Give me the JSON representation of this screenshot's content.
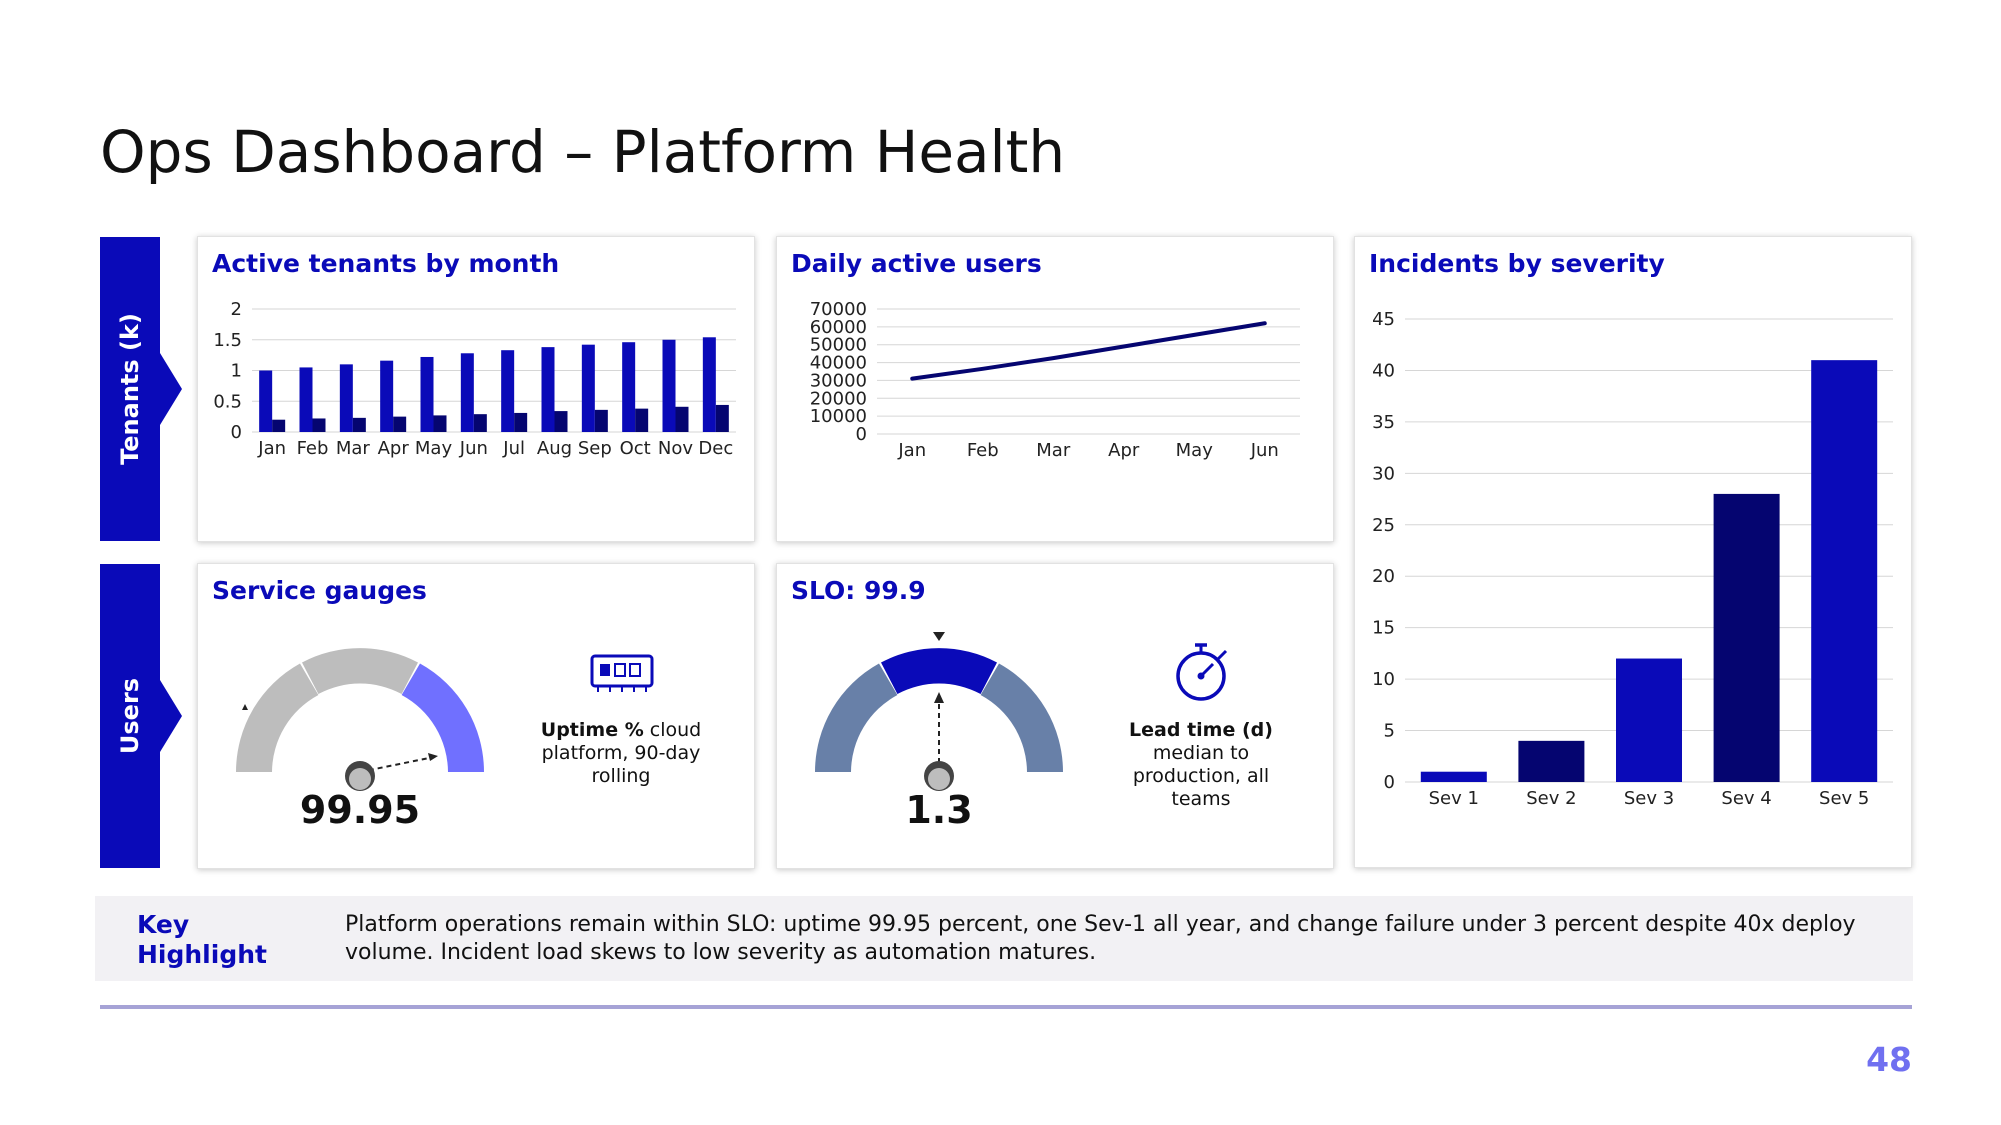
{
  "page": {
    "title": "Ops Dashboard – Platform Health",
    "page_number": "48"
  },
  "side_tabs": {
    "top": "Tenants (k)",
    "bottom": "Users"
  },
  "colors": {
    "accent": "#0a0ab8",
    "dark_navy": "#050570",
    "light_blue": "#7070ff",
    "gray": "#bdbdbd",
    "slate": "#6880a8"
  },
  "cards": {
    "tenants": {
      "title": "Active tenants by month"
    },
    "dau": {
      "title": "Daily active users"
    },
    "incidents": {
      "title": "Incidents by severity"
    },
    "gauges": {
      "title": "Service gauges",
      "value": "99.95",
      "kpi_bold": "Uptime %",
      "kpi_text": " cloud platform, 90-day rolling",
      "icon": "server-icon"
    },
    "slo": {
      "title": "SLO: 99.9",
      "value": "1.3",
      "kpi_bold": "Lead time (d)",
      "kpi_text": "median to production, all teams",
      "icon": "stopwatch-icon"
    }
  },
  "highlight": {
    "label": "Key Highlight",
    "text": "Platform operations remain within SLO: uptime 99.95 percent, one Sev-1 all year, and change failure under 3 percent despite 40x deploy volume. Incident load skews to low severity as automation matures."
  },
  "chart_data": [
    {
      "id": "tenants",
      "type": "bar",
      "title": "Active tenants by month",
      "categories": [
        "Jan",
        "Feb",
        "Mar",
        "Apr",
        "May",
        "Jun",
        "Jul",
        "Aug",
        "Sep",
        "Oct",
        "Nov",
        "Dec"
      ],
      "series": [
        {
          "values": [
            1.0,
            1.05,
            1.1,
            1.16,
            1.22,
            1.28,
            1.33,
            1.38,
            1.42,
            1.46,
            1.5,
            1.54
          ]
        },
        {
          "values": [
            0.2,
            0.22,
            0.23,
            0.25,
            0.27,
            0.29,
            0.31,
            0.34,
            0.36,
            0.38,
            0.41,
            0.44
          ]
        }
      ],
      "ylim": [
        0,
        2
      ],
      "yticks": [
        "0",
        "0.5",
        "1",
        "1.5",
        "2"
      ],
      "grid": true
    },
    {
      "id": "dau",
      "type": "line",
      "title": "Daily active users",
      "categories": [
        "Jan",
        "Feb",
        "Mar",
        "Apr",
        "May",
        "Jun"
      ],
      "series": [
        {
          "values": [
            31000,
            36500,
            42500,
            49000,
            55500,
            62000
          ]
        }
      ],
      "ylim": [
        0,
        70000
      ],
      "yticks": [
        "0",
        "10000",
        "20000",
        "30000",
        "40000",
        "50000",
        "60000",
        "70000"
      ],
      "grid": true
    },
    {
      "id": "incidents",
      "type": "bar",
      "title": "Incidents by severity",
      "categories": [
        "Sev 1",
        "Sev 2",
        "Sev 3",
        "Sev 4",
        "Sev 5"
      ],
      "series": [
        {
          "values": [
            1,
            4,
            12,
            28,
            41
          ]
        }
      ],
      "ylim": [
        0,
        45
      ],
      "yticks": [
        "0",
        "5",
        "10",
        "15",
        "20",
        "25",
        "30",
        "35",
        "40",
        "45"
      ],
      "grid": true
    }
  ]
}
